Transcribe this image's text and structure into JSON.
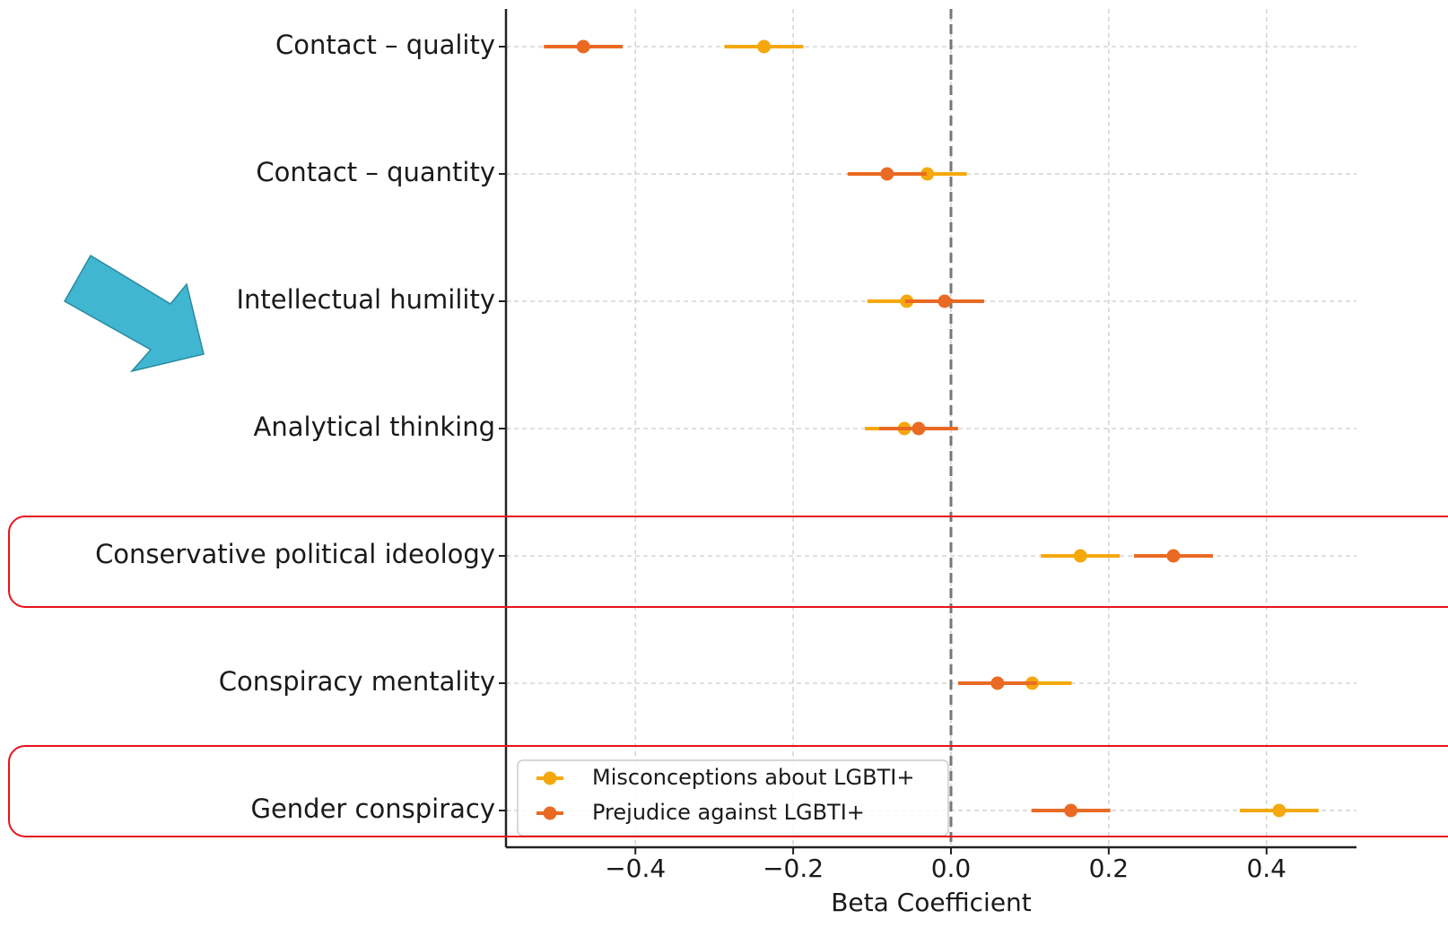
{
  "chart_data": {
    "type": "forest",
    "xlabel": "Beta Coefficient",
    "categories": [
      "Contact – quality",
      "Contact – quantity",
      "Intellectual humility",
      "Analytical thinking",
      "Conservative political ideology",
      "Conspiracy mentality",
      "Gender conspiracy"
    ],
    "series": [
      {
        "name": "Misconceptions about LGBTI+",
        "color": "#f5a80c",
        "values": [
          -0.237,
          -0.03,
          -0.056,
          -0.059,
          0.164,
          0.103,
          0.416
        ],
        "errors": [
          0.05,
          0.05,
          0.05,
          0.05,
          0.05,
          0.05,
          0.05
        ]
      },
      {
        "name": "Prejudice against LGBTI+",
        "color": "#ea6a23",
        "values": [
          -0.466,
          -0.081,
          -0.008,
          -0.041,
          0.282,
          0.059,
          0.152
        ],
        "errors": [
          0.05,
          0.05,
          0.05,
          0.05,
          0.05,
          0.05,
          0.05
        ]
      }
    ],
    "xlim": [
      -0.564,
      0.514
    ],
    "xticks": [
      {
        "value": -0.4,
        "label": "−0.4"
      },
      {
        "value": -0.2,
        "label": "−0.2"
      },
      {
        "value": 0,
        "label": "0.0"
      },
      0.2,
      0.4
    ],
    "vline": 0,
    "grid": true,
    "legend": "lower left"
  }
}
